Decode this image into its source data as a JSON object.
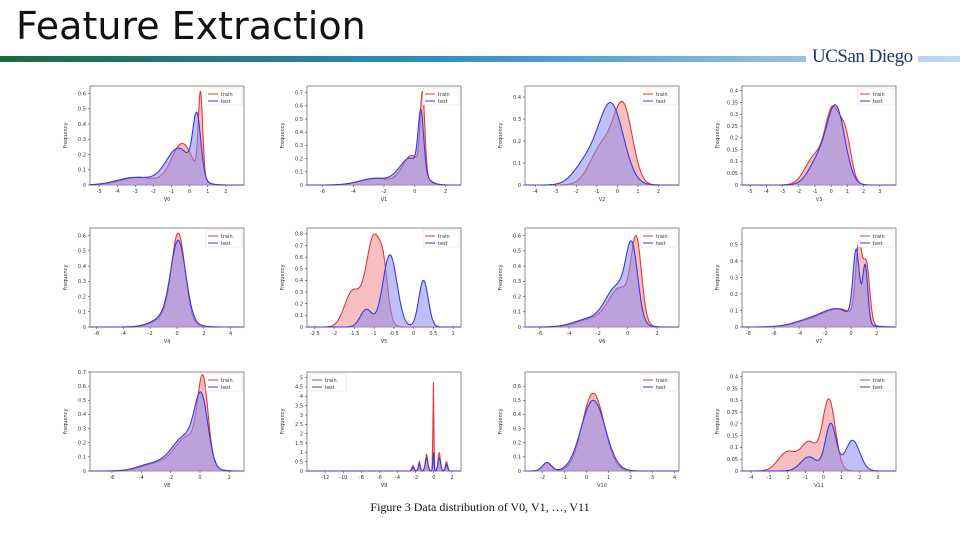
{
  "title": "Feature Extraction",
  "logo": "UCSan Diego",
  "caption": "Figure 3 Data distribution of V0, V1, …, V11",
  "colors": {
    "bar_start": "#1b6b3a",
    "bar_mid": "#2e8bc9",
    "bar_end": "#c7d8ec",
    "train": "#e03a3a",
    "test": "#3a3ae0",
    "train_fill": "#f08a8a",
    "test_fill": "#8a8af0",
    "overlap": "#a865b8"
  },
  "chart_data": [
    {
      "type": "area",
      "xlabel": "V0",
      "ylabel": "Frequency",
      "xlim": [
        -5.5,
        3
      ],
      "ylim": [
        0,
        0.65
      ],
      "xticks": [
        -5,
        -4,
        -3,
        -2,
        -1,
        0,
        1,
        2
      ],
      "yticks": [
        0,
        0.1,
        0.2,
        0.3,
        0.4,
        0.5,
        0.6
      ],
      "legend": [
        "train",
        "test"
      ],
      "legend_position": "top-right",
      "series": [
        {
          "name": "train",
          "components": [
            [
              0.6,
              0.12,
              0.55
            ],
            [
              -0.4,
              0.6,
              0.27
            ],
            [
              -2.8,
              1.0,
              0.05
            ]
          ]
        },
        {
          "name": "test",
          "components": [
            [
              0.4,
              0.22,
              0.39
            ],
            [
              -0.6,
              0.7,
              0.24
            ],
            [
              -3.0,
              1.0,
              0.05
            ]
          ]
        }
      ]
    },
    {
      "type": "area",
      "xlabel": "V1",
      "ylabel": "Frequency",
      "xlim": [
        -7,
        3
      ],
      "ylim": [
        0,
        0.75
      ],
      "xticks": [
        -6,
        -4,
        -2,
        0,
        2
      ],
      "yticks": [
        0,
        0.1,
        0.2,
        0.3,
        0.4,
        0.5,
        0.6,
        0.7
      ],
      "legend": [
        "train",
        "test"
      ],
      "legend_position": "top-right",
      "series": [
        {
          "name": "train",
          "components": [
            [
              0.5,
              0.15,
              0.6
            ],
            [
              -0.2,
              0.6,
              0.22
            ],
            [
              -2.5,
              1.0,
              0.05
            ]
          ]
        },
        {
          "name": "test",
          "components": [
            [
              0.4,
              0.18,
              0.45
            ],
            [
              -0.3,
              0.7,
              0.2
            ],
            [
              -2.6,
              1.0,
              0.05
            ]
          ]
        }
      ]
    },
    {
      "type": "area",
      "xlabel": "V2",
      "ylabel": "Frequency",
      "xlim": [
        -4.5,
        3
      ],
      "ylim": [
        0,
        0.45
      ],
      "xticks": [
        -4,
        -3,
        -2,
        -1,
        0,
        1,
        2
      ],
      "yticks": [
        0,
        0.1,
        0.2,
        0.3,
        0.4
      ],
      "legend": [
        "train",
        "test"
      ],
      "legend_position": "top-right",
      "series": [
        {
          "name": "train",
          "components": [
            [
              0.3,
              0.45,
              0.33
            ],
            [
              -0.7,
              0.6,
              0.18
            ]
          ]
        },
        {
          "name": "test",
          "components": [
            [
              -0.3,
              0.6,
              0.36
            ],
            [
              -1.5,
              0.6,
              0.1
            ]
          ]
        }
      ]
    },
    {
      "type": "area",
      "xlabel": "V3",
      "ylabel": "Frequency",
      "xlim": [
        -5.5,
        4
      ],
      "ylim": [
        0,
        0.42
      ],
      "xticks": [
        -5,
        -4,
        -3,
        -2,
        -1,
        0,
        1,
        2,
        3
      ],
      "yticks": [
        0,
        0.05,
        0.1,
        0.15,
        0.2,
        0.25,
        0.3,
        0.35,
        0.4
      ],
      "legend": [
        "train",
        "test"
      ],
      "legend_position": "top-right",
      "series": [
        {
          "name": "train",
          "components": [
            [
              0.1,
              0.45,
              0.3
            ],
            [
              0.9,
              0.35,
              0.18
            ],
            [
              -1.0,
              0.6,
              0.12
            ]
          ]
        },
        {
          "name": "test",
          "components": [
            [
              0.3,
              0.55,
              0.32
            ],
            [
              -0.8,
              0.6,
              0.1
            ]
          ]
        }
      ]
    },
    {
      "type": "area",
      "xlabel": "V4",
      "ylabel": "Frequency",
      "xlim": [
        -6.5,
        5
      ],
      "ylim": [
        0,
        0.65
      ],
      "xticks": [
        -6,
        -4,
        -2,
        0,
        2,
        4
      ],
      "yticks": [
        0,
        0.1,
        0.2,
        0.3,
        0.4,
        0.5,
        0.6
      ],
      "legend": [
        "train",
        "test"
      ],
      "legend_position": "top-right",
      "series": [
        {
          "name": "train",
          "components": [
            [
              0.1,
              0.5,
              0.55
            ],
            [
              -0.5,
              1.0,
              0.08
            ]
          ]
        },
        {
          "name": "test",
          "components": [
            [
              0.1,
              0.55,
              0.5
            ],
            [
              -0.5,
              1.1,
              0.08
            ]
          ]
        }
      ]
    },
    {
      "type": "area",
      "xlabel": "V5",
      "ylabel": "Frequency",
      "xlim": [
        -2.7,
        1.2
      ],
      "ylim": [
        0,
        0.85
      ],
      "xticks": [
        -2.5,
        -2,
        -1.5,
        -1,
        -0.5,
        0,
        0.5,
        1
      ],
      "yticks": [
        0,
        0.1,
        0.2,
        0.3,
        0.4,
        0.5,
        0.6,
        0.7,
        0.8
      ],
      "legend": [
        "train",
        "test"
      ],
      "legend_position": "top-right",
      "series": [
        {
          "name": "train",
          "components": [
            [
              -1.0,
              0.2,
              0.78
            ],
            [
              -1.55,
              0.2,
              0.3
            ],
            [
              -0.75,
              0.1,
              0.25
            ]
          ]
        },
        {
          "name": "test",
          "components": [
            [
              -0.6,
              0.18,
              0.62
            ],
            [
              0.25,
              0.12,
              0.4
            ],
            [
              -1.2,
              0.15,
              0.15
            ]
          ]
        }
      ]
    },
    {
      "type": "area",
      "xlabel": "V6",
      "ylabel": "Frequency",
      "xlim": [
        -7,
        3.5
      ],
      "ylim": [
        0,
        0.65
      ],
      "xticks": [
        -6,
        -4,
        -2,
        0,
        2
      ],
      "yticks": [
        0,
        0.1,
        0.2,
        0.3,
        0.4,
        0.5,
        0.6
      ],
      "legend": [
        "train",
        "test"
      ],
      "legend_position": "top-right",
      "series": [
        {
          "name": "train",
          "components": [
            [
              0.6,
              0.35,
              0.5
            ],
            [
              -0.5,
              0.8,
              0.25
            ],
            [
              -2.5,
              1.0,
              0.05
            ]
          ]
        },
        {
          "name": "test",
          "components": [
            [
              0.3,
              0.4,
              0.44
            ],
            [
              -0.7,
              0.8,
              0.26
            ],
            [
              -2.7,
              1.0,
              0.05
            ]
          ]
        }
      ]
    },
    {
      "type": "area",
      "xlabel": "V7",
      "ylabel": "Frequency",
      "xlim": [
        -8.5,
        3.5
      ],
      "ylim": [
        0,
        0.6
      ],
      "xticks": [
        -8,
        -6,
        -4,
        -2,
        0,
        2
      ],
      "yticks": [
        0,
        0.1,
        0.2,
        0.3,
        0.4,
        0.5
      ],
      "legend": [
        "train",
        "test"
      ],
      "legend_position": "top-right",
      "series": [
        {
          "name": "train",
          "components": [
            [
              0.6,
              0.25,
              0.45
            ],
            [
              1.2,
              0.25,
              0.35
            ],
            [
              -0.8,
              1.2,
              0.1
            ],
            [
              -3.0,
              1.3,
              0.04
            ]
          ]
        },
        {
          "name": "test",
          "components": [
            [
              0.4,
              0.25,
              0.42
            ],
            [
              1.1,
              0.2,
              0.35
            ],
            [
              -1.0,
              1.2,
              0.1
            ],
            [
              -3.2,
              1.3,
              0.04
            ]
          ]
        }
      ]
    },
    {
      "type": "area",
      "xlabel": "V8",
      "ylabel": "Frequency",
      "xlim": [
        -7.5,
        3
      ],
      "ylim": [
        0,
        0.7
      ],
      "xticks": [
        -6,
        -4,
        -2,
        0,
        2
      ],
      "yticks": [
        0,
        0.1,
        0.2,
        0.3,
        0.4,
        0.5,
        0.6,
        0.7
      ],
      "legend": [
        "train",
        "test"
      ],
      "legend_position": "top-right",
      "series": [
        {
          "name": "train",
          "components": [
            [
              0.2,
              0.35,
              0.55
            ],
            [
              -0.8,
              0.9,
              0.24
            ],
            [
              -3.0,
              1.0,
              0.05
            ]
          ]
        },
        {
          "name": "test",
          "components": [
            [
              0.1,
              0.45,
              0.44
            ],
            [
              -1.0,
              0.9,
              0.24
            ],
            [
              -3.2,
              1.0,
              0.05
            ]
          ]
        }
      ]
    },
    {
      "type": "area",
      "xlabel": "V9",
      "ylabel": "Frequency",
      "xlim": [
        -14,
        3
      ],
      "ylim": [
        0,
        5.3
      ],
      "xticks": [
        -12,
        -10,
        -8,
        -6,
        -4,
        -2,
        0,
        2
      ],
      "yticks": [
        0,
        0.5,
        1,
        1.5,
        2,
        2.5,
        3,
        3.5,
        4,
        4.5,
        5
      ],
      "legend": [
        "train",
        "test"
      ],
      "legend_position": "top-left",
      "series": [
        {
          "name": "train",
          "components": [
            [
              -0.05,
              0.05,
              4.8
            ],
            [
              0.6,
              0.12,
              1.0
            ],
            [
              -0.8,
              0.12,
              0.9
            ],
            [
              -1.6,
              0.1,
              0.5
            ],
            [
              1.4,
              0.12,
              0.5
            ],
            [
              -2.3,
              0.12,
              0.3
            ]
          ]
        },
        {
          "name": "test",
          "components": [
            [
              -0.05,
              0.06,
              1.0
            ],
            [
              0.6,
              0.15,
              0.7
            ],
            [
              -0.8,
              0.15,
              0.7
            ],
            [
              -1.6,
              0.1,
              0.4
            ],
            [
              1.4,
              0.12,
              0.35
            ],
            [
              -2.3,
              0.12,
              0.2
            ]
          ]
        }
      ]
    },
    {
      "type": "area",
      "xlabel": "V10",
      "ylabel": "Frequency",
      "xlim": [
        -2.8,
        4.2
      ],
      "ylim": [
        0,
        0.7
      ],
      "xticks": [
        -2,
        -1,
        0,
        1,
        2,
        3,
        4
      ],
      "yticks": [
        0,
        0.1,
        0.2,
        0.3,
        0.4,
        0.5,
        0.6
      ],
      "legend": [
        "train",
        "test"
      ],
      "legend_position": "top-right",
      "series": [
        {
          "name": "train",
          "components": [
            [
              0.3,
              0.5,
              0.55
            ],
            [
              -1.8,
              0.2,
              0.06
            ]
          ]
        },
        {
          "name": "test",
          "components": [
            [
              0.3,
              0.55,
              0.5
            ],
            [
              -1.8,
              0.2,
              0.06
            ]
          ]
        }
      ]
    },
    {
      "type": "area",
      "xlabel": "V11",
      "ylabel": "Frequency",
      "xlim": [
        -4.5,
        4
      ],
      "ylim": [
        0,
        0.42
      ],
      "xticks": [
        -4,
        -3,
        -2,
        -1,
        0,
        1,
        2,
        3
      ],
      "yticks": [
        0,
        0.05,
        0.1,
        0.15,
        0.2,
        0.25,
        0.3,
        0.35,
        0.4
      ],
      "legend": [
        "train",
        "test"
      ],
      "legend_position": "top-right",
      "series": [
        {
          "name": "train",
          "components": [
            [
              0.3,
              0.35,
              0.3
            ],
            [
              -0.8,
              0.45,
              0.12
            ],
            [
              -2.0,
              0.5,
              0.08
            ]
          ]
        },
        {
          "name": "test",
          "components": [
            [
              0.4,
              0.3,
              0.2
            ],
            [
              1.6,
              0.4,
              0.13
            ],
            [
              -0.8,
              0.45,
              0.06
            ]
          ]
        }
      ]
    }
  ]
}
